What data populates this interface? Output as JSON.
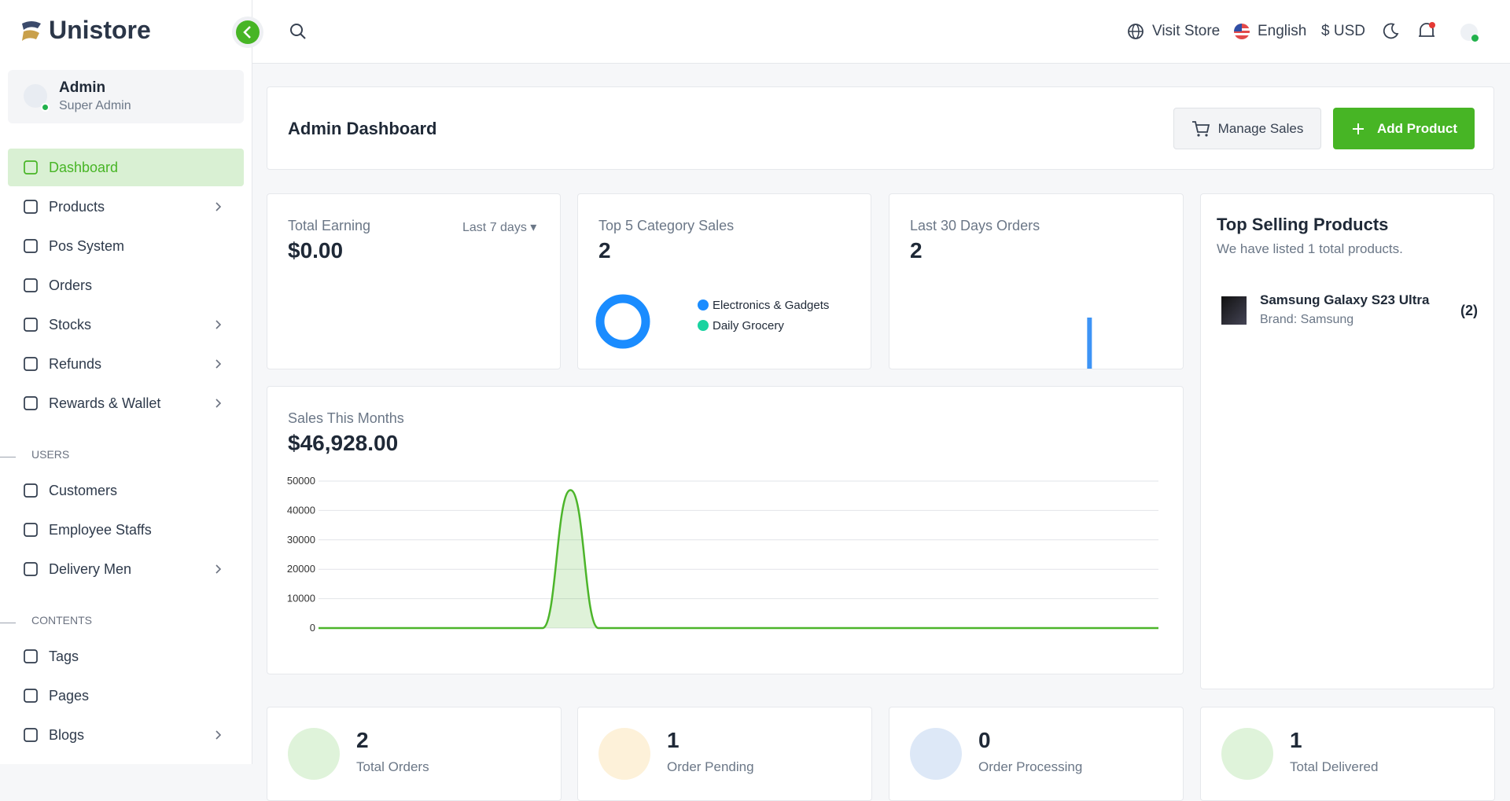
{
  "header": {
    "brand": "Unistore",
    "visit_store": "Visit Store",
    "language": "English",
    "currency": "$ USD"
  },
  "sidebar": {
    "user_name": "Admin",
    "user_role": "Super Admin",
    "items": [
      "Dashboard",
      "Products",
      "Pos System",
      "Orders",
      "Stocks",
      "Refunds",
      "Rewards & Wallet"
    ],
    "users_heading": "USERS",
    "users_items": [
      "Customers",
      "Employee Staffs",
      "Delivery Men"
    ],
    "contents_heading": "CONTENTS",
    "contents_items": [
      "Tags",
      "Pages",
      "Blogs"
    ]
  },
  "page": {
    "title": "Admin Dashboard",
    "manage_sales": "Manage Sales",
    "add_product": "Add Product"
  },
  "cards": {
    "earning_label": "Total Earning",
    "earning_value": "$0.00",
    "earning_filter": "Last 7 days",
    "category_value": "2",
    "orders_value": "2",
    "sales_value": "$46,928.00"
  },
  "chart_data": [
    {
      "type": "pie",
      "title": "Top 5 Category Sales",
      "categories": [
        "Electronics & Gadgets",
        "Daily Grocery"
      ],
      "values": [
        2,
        0
      ],
      "colors": [
        "#1a8cff",
        "#19d3a0"
      ]
    },
    {
      "type": "bar",
      "title": "Last 30 Days Orders",
      "values": [
        0,
        0,
        0,
        0,
        0,
        0,
        0,
        0,
        0,
        0,
        0,
        0,
        0,
        0,
        0,
        0,
        0,
        0,
        0,
        0,
        0,
        2,
        0,
        0,
        0,
        0,
        0,
        0,
        0,
        0
      ],
      "color": "#3d94f6",
      "ylim": [
        0,
        2
      ]
    },
    {
      "type": "area",
      "title": "Sales This Months",
      "values": [
        0,
        0,
        0,
        0,
        0,
        0,
        0,
        0,
        0,
        46928,
        0,
        0,
        0,
        0,
        0,
        0,
        0,
        0,
        0,
        0,
        0,
        0,
        0,
        0,
        0,
        0,
        0,
        0,
        0,
        0,
        0
      ],
      "color": "#4cb52a",
      "ylim": [
        0,
        50000
      ],
      "yticks": [
        0,
        10000,
        20000,
        30000,
        40000,
        50000
      ],
      "grid": true
    }
  ],
  "top_selling": {
    "title": "Top Selling Products",
    "subtitle": "We have listed 1 total products.",
    "products": [
      {
        "name": "Samsung Galaxy S23 Ultra",
        "brand": "Brand: Samsung",
        "count": "(2)"
      }
    ]
  },
  "stats": [
    {
      "value": "2",
      "label": "Total Orders"
    },
    {
      "value": "1",
      "label": "Order Pending"
    },
    {
      "value": "0",
      "label": "Order Processing"
    },
    {
      "value": "1",
      "label": "Total Delivered"
    }
  ]
}
